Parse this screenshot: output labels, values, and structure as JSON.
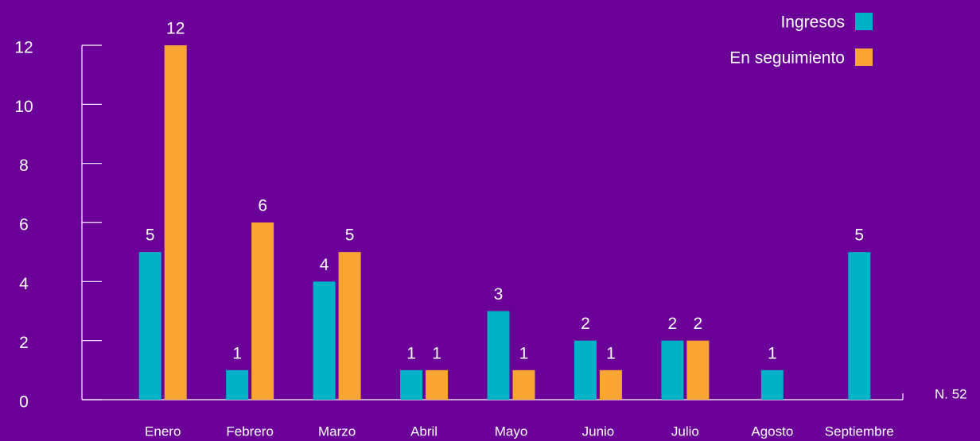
{
  "chart_data": {
    "type": "bar",
    "categories": [
      "Enero",
      "Febrero",
      "Marzo",
      "Abril",
      "Mayo",
      "Junio",
      "Julio",
      "Agosto",
      "Septiembre"
    ],
    "series": [
      {
        "name": "Ingresos",
        "color": "#00b2c8",
        "values": [
          5,
          1,
          4,
          1,
          3,
          2,
          2,
          1,
          5
        ]
      },
      {
        "name": "En seguimiento",
        "color": "#f9a533",
        "values": [
          12,
          6,
          5,
          1,
          1,
          1,
          2,
          null,
          null
        ]
      }
    ],
    "ylim": [
      0,
      12
    ],
    "yticks": [
      0,
      2,
      4,
      6,
      8,
      10,
      12
    ],
    "annotation": "N. 52",
    "legend": "upper right"
  }
}
